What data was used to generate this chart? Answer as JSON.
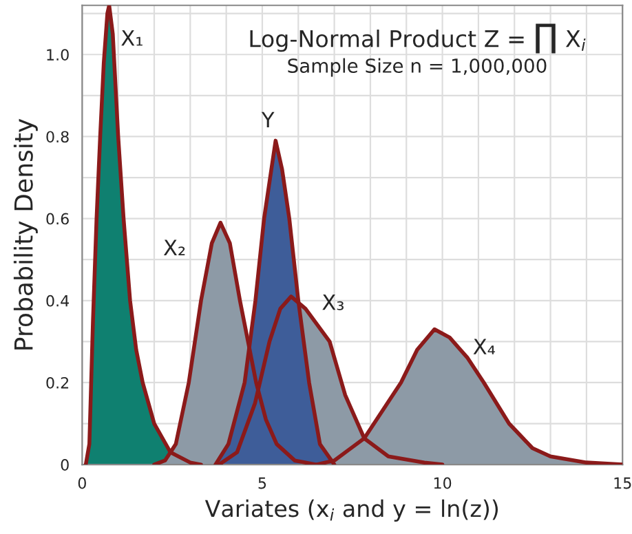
{
  "chart_data": {
    "type": "area",
    "title": "Log-Normal Product Z = ∏ X$_{i}$",
    "subtitle": "Sample Size n = 1,000,000",
    "xlabel": "Variates (x$_{i}$ and y = ln(z))",
    "ylabel": "Probability Density",
    "xlim": [
      0,
      15
    ],
    "xticks": [
      0,
      5,
      10,
      15
    ],
    "ylim": [
      0,
      1.12
    ],
    "yticks": [
      0,
      0.2,
      0.4,
      0.6,
      0.8,
      {
        "value": 1,
        "label": "1.0"
      }
    ],
    "grid": true,
    "legend": false,
    "series": [
      {
        "name": "X₁",
        "color": "#0f8070",
        "x": [
          0.1,
          0.2,
          0.3,
          0.4,
          0.5,
          0.6,
          0.7,
          0.75,
          0.85,
          1.0,
          1.15,
          1.33,
          1.5,
          1.68,
          2.0,
          2.45,
          3.0,
          3.3
        ],
        "values": [
          0,
          0.05,
          0.35,
          0.6,
          0.8,
          0.98,
          1.1,
          1.12,
          1.05,
          0.8,
          0.6,
          0.4,
          0.28,
          0.2,
          0.1,
          0.03,
          0.005,
          0
        ]
      },
      {
        "name": "X₂",
        "color": "#8d9aa6",
        "x": [
          2.0,
          2.3,
          2.6,
          2.96,
          3.3,
          3.6,
          3.84,
          4.1,
          4.38,
          4.83,
          5.1,
          5.4,
          5.9,
          6.5
        ],
        "values": [
          0,
          0.01,
          0.05,
          0.2,
          0.4,
          0.54,
          0.59,
          0.54,
          0.4,
          0.2,
          0.11,
          0.05,
          0.01,
          0
        ]
      },
      {
        "name": "X₃",
        "color": "#8d9aa6",
        "x": [
          3.8,
          4.3,
          4.8,
          5.2,
          5.5,
          5.8,
          6.2,
          6.87,
          7.3,
          7.83,
          8.5,
          9.5,
          10.0
        ],
        "values": [
          0,
          0.03,
          0.15,
          0.3,
          0.38,
          0.41,
          0.38,
          0.3,
          0.17,
          0.064,
          0.02,
          0.005,
          0
        ]
      },
      {
        "name": "X₄",
        "color": "#8d9aa6",
        "x": [
          6.5,
          7.0,
          7.83,
          8.4,
          8.85,
          9.3,
          9.78,
          10.2,
          10.7,
          11.15,
          11.85,
          12.5,
          13.0,
          14.0,
          15.0
        ],
        "values": [
          0,
          0.01,
          0.064,
          0.14,
          0.2,
          0.28,
          0.33,
          0.31,
          0.26,
          0.2,
          0.1,
          0.04,
          0.02,
          0.005,
          0
        ]
      },
      {
        "name": "Y",
        "color": "#3e5d99",
        "x": [
          3.7,
          4.06,
          4.51,
          4.81,
          5.05,
          5.37,
          5.55,
          5.75,
          6.0,
          6.3,
          6.6,
          7.0
        ],
        "values": [
          0,
          0.05,
          0.2,
          0.4,
          0.6,
          0.79,
          0.72,
          0.6,
          0.4,
          0.2,
          0.05,
          0
        ]
      }
    ]
  }
}
